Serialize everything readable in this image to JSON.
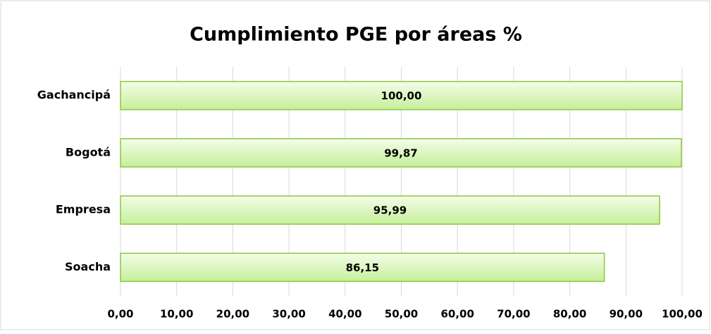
{
  "chart_data": {
    "type": "bar",
    "orientation": "horizontal",
    "title": "Cumplimiento PGE por áreas %",
    "categories": [
      "Gachancipá",
      "Bogotá",
      "Empresa",
      "Soacha"
    ],
    "values": [
      100,
      99.87,
      95.99,
      86.15
    ],
    "value_labels": [
      "100,00",
      "99,87",
      "95,99",
      "86,15"
    ],
    "color": "#c6ef9a",
    "xlim": [
      0,
      100
    ],
    "xticks": [
      {
        "value": 0,
        "label": "0,00"
      },
      {
        "value": 10,
        "label": "10,00"
      },
      {
        "value": 20,
        "label": "20,00"
      },
      {
        "value": 30,
        "label": "30,00"
      },
      {
        "value": 40,
        "label": "40,00"
      },
      {
        "value": 50,
        "label": "50,00"
      },
      {
        "value": 60,
        "label": "60,00"
      },
      {
        "value": 70,
        "label": "70,00"
      },
      {
        "value": 80,
        "label": "80,00"
      },
      {
        "value": 90,
        "label": "90,00"
      },
      {
        "value": 100,
        "label": "100,00"
      }
    ],
    "grid": true
  }
}
